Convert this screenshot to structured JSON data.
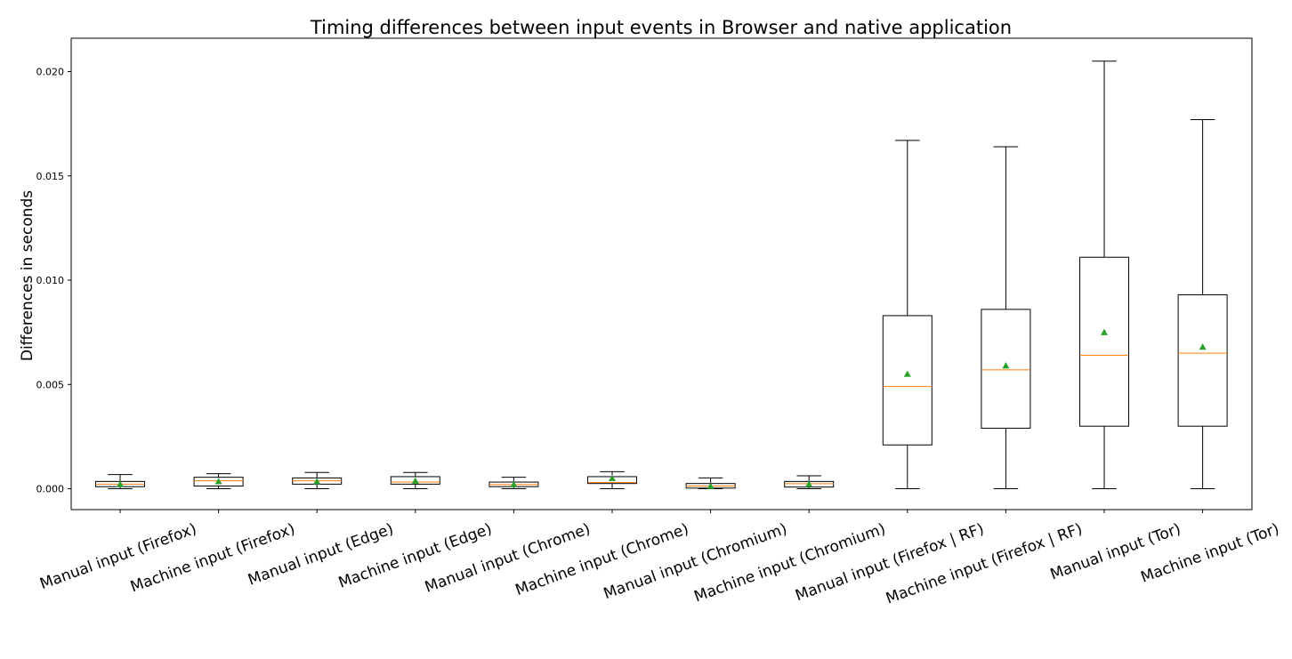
{
  "chart_data": {
    "type": "boxplot",
    "title": "Timing differences between input events in Browser and native application",
    "xlabel": "",
    "ylabel": "Differences in seconds",
    "ylim": [
      -0.001,
      0.0216
    ],
    "yticks": [
      0.0,
      0.005,
      0.01,
      0.015,
      0.02
    ],
    "ytick_labels": [
      "0.000",
      "0.005",
      "0.010",
      "0.015",
      "0.020"
    ],
    "grid": false,
    "legend": "none",
    "colors": {
      "box": "#000000",
      "median": "#ff7f0e",
      "mean_marker": "#2ca02c",
      "background": "#ffffff"
    },
    "categories": [
      "Manual input (Firefox)",
      "Machine input (Firefox)",
      "Manual input (Edge)",
      "Machine input (Edge)",
      "Manual input (Chrome)",
      "Machine input (Chrome)",
      "Manual input (Chromium)",
      "Machine input (Chromium)",
      "Manual input (Firefox | RF)",
      "Machine input (Firefox | RF)",
      "Manual input (Tor)",
      "Machine input (Tor)"
    ],
    "boxes": [
      {
        "whisker_low": 0.0,
        "q1": 0.0001,
        "median": 0.00022,
        "q3": 0.00035,
        "whisker_high": 0.00068,
        "mean": 0.00022
      },
      {
        "whisker_low": 0.0,
        "q1": 0.00013,
        "median": 0.00038,
        "q3": 0.00055,
        "whisker_high": 0.00072,
        "mean": 0.00035
      },
      {
        "whisker_low": 0.0,
        "q1": 0.00022,
        "median": 0.00038,
        "q3": 0.00052,
        "whisker_high": 0.00078,
        "mean": 0.00035
      },
      {
        "whisker_low": 0.0,
        "q1": 0.00022,
        "median": 0.00032,
        "q3": 0.00058,
        "whisker_high": 0.00078,
        "mean": 0.00038
      },
      {
        "whisker_low": 0.0,
        "q1": 0.0001,
        "median": 0.0002,
        "q3": 0.00032,
        "whisker_high": 0.00055,
        "mean": 0.0002
      },
      {
        "whisker_low": 0.0,
        "q1": 0.00025,
        "median": 0.0003,
        "q3": 0.00058,
        "whisker_high": 0.00082,
        "mean": 0.0005
      },
      {
        "whisker_low": 0.0,
        "q1": 3e-05,
        "median": 0.00013,
        "q3": 0.00025,
        "whisker_high": 0.00052,
        "mean": 0.00013
      },
      {
        "whisker_low": 0.0,
        "q1": 8e-05,
        "median": 0.00024,
        "q3": 0.00035,
        "whisker_high": 0.00062,
        "mean": 0.00022
      },
      {
        "whisker_low": 0.0,
        "q1": 0.0021,
        "median": 0.0049,
        "q3": 0.0083,
        "whisker_high": 0.0167,
        "mean": 0.0055
      },
      {
        "whisker_low": 0.0,
        "q1": 0.0029,
        "median": 0.0057,
        "q3": 0.0086,
        "whisker_high": 0.0164,
        "mean": 0.0059
      },
      {
        "whisker_low": 0.0,
        "q1": 0.003,
        "median": 0.0064,
        "q3": 0.0111,
        "whisker_high": 0.0205,
        "mean": 0.0075
      },
      {
        "whisker_low": 0.0,
        "q1": 0.003,
        "median": 0.0065,
        "q3": 0.0093,
        "whisker_high": 0.0177,
        "mean": 0.0068
      }
    ]
  }
}
